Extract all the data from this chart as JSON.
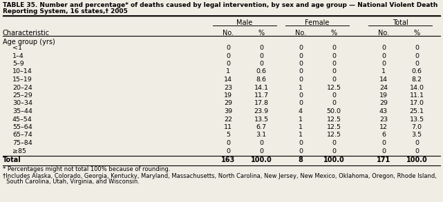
{
  "title_line1": "TABLE 35. Number and percentage* of deaths caused by legal intervention, by sex and age group — National Violent Death",
  "title_line2": "Reporting System, 16 states,† 2005",
  "col_groups": [
    "Male",
    "Female",
    "Total"
  ],
  "col_headers": [
    "No.",
    "%",
    "No.",
    "%",
    "No.",
    "%"
  ],
  "row_header": "Characteristic",
  "section_header": "Age group (yrs)",
  "rows": [
    [
      "<1",
      "0",
      "0",
      "0",
      "0",
      "0",
      "0"
    ],
    [
      "1–4",
      "0",
      "0",
      "0",
      "0",
      "0",
      "0"
    ],
    [
      "5–9",
      "0",
      "0",
      "0",
      "0",
      "0",
      "0"
    ],
    [
      "10–14",
      "1",
      "0.6",
      "0",
      "0",
      "1",
      "0.6"
    ],
    [
      "15–19",
      "14",
      "8.6",
      "0",
      "0",
      "14",
      "8.2"
    ],
    [
      "20–24",
      "23",
      "14.1",
      "1",
      "12.5",
      "24",
      "14.0"
    ],
    [
      "25–29",
      "19",
      "11.7",
      "0",
      "0",
      "19",
      "11.1"
    ],
    [
      "30–34",
      "29",
      "17.8",
      "0",
      "0",
      "29",
      "17.0"
    ],
    [
      "35–44",
      "39",
      "23.9",
      "4",
      "50.0",
      "43",
      "25.1"
    ],
    [
      "45–54",
      "22",
      "13.5",
      "1",
      "12.5",
      "23",
      "13.5"
    ],
    [
      "55–64",
      "11",
      "6.7",
      "1",
      "12.5",
      "12",
      "7.0"
    ],
    [
      "65–74",
      "5",
      "3.1",
      "1",
      "12.5",
      "6",
      "3.5"
    ],
    [
      "75–84",
      "0",
      "0",
      "0",
      "0",
      "0",
      "0"
    ],
    [
      "≥85",
      "0",
      "0",
      "0",
      "0",
      "0",
      "0"
    ]
  ],
  "total_row": [
    "Total",
    "163",
    "100.0",
    "8",
    "100.0",
    "171",
    "100.0"
  ],
  "footnote1": "* Percentages might not total 100% because of rounding.",
  "footnote2": "†Includes Alaska, Colorado, Georgia, Kentucky, Maryland, Massachusetts, North Carolina, New Jersey, New Mexico, Oklahoma, Oregon, Rhode Island,",
  "footnote3": "  South Carolina, Utah, Virginia, and Wisconsin.",
  "background_color": "#f0ede4",
  "line_color": "#000000",
  "text_color": "#000000"
}
